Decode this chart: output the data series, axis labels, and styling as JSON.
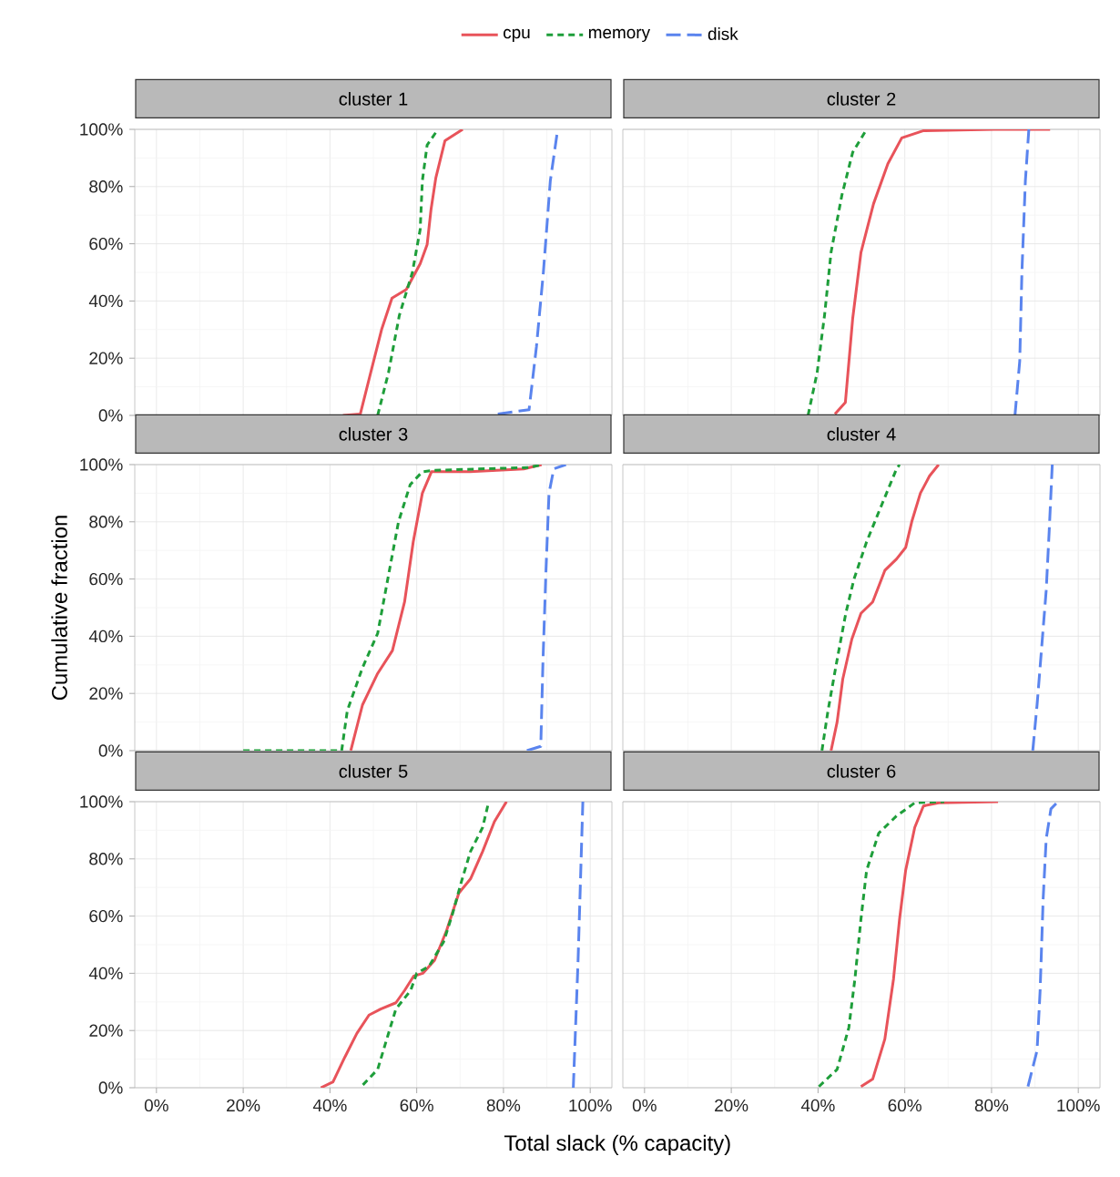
{
  "chart_data": [
    {
      "type": "line",
      "title": "cluster 1",
      "legend": "top",
      "grid": true,
      "tick_labels": "y",
      "xlim": [
        -5,
        105
      ],
      "ylim": [
        0,
        100
      ],
      "xticks": [
        {
          "value": 0,
          "label": null
        },
        {
          "value": 20,
          "label": null
        },
        {
          "value": 40,
          "label": null
        },
        {
          "value": 60,
          "label": null
        },
        {
          "value": 80,
          "label": null
        },
        {
          "value": 100,
          "label": null
        }
      ],
      "yticks": [
        {
          "value": 0,
          "label": "0%"
        },
        {
          "value": 20,
          "label": "20%"
        },
        {
          "value": 40,
          "label": "40%"
        },
        {
          "value": 60,
          "label": "60%"
        },
        {
          "value": 80,
          "label": "80%"
        },
        {
          "value": 100,
          "label": "100%"
        }
      ],
      "series": [
        {
          "name": "cpu",
          "color": "#e8535a",
          "line_style": "solid",
          "x": [
            43,
            47,
            49.4,
            51.9,
            54.3,
            57.6,
            60.8,
            62.4,
            63.3,
            64.4,
            66.5,
            70.6
          ],
          "values": [
            0,
            0.5,
            15,
            30,
            41,
            44,
            53,
            59.7,
            72,
            83,
            96,
            100
          ]
        },
        {
          "name": "memory",
          "color": "#1e9e3a",
          "line_style": "dotted",
          "x": [
            51,
            53.5,
            56,
            59,
            60.8,
            61.3,
            62.4,
            64.9
          ],
          "values": [
            0,
            15,
            35,
            50,
            65,
            82,
            94.5,
            100
          ]
        },
        {
          "name": "disk",
          "color": "#5a84ee",
          "line_style": "dashed",
          "x": [
            78.7,
            85.9,
            87.6,
            89.2,
            90.8,
            92.5
          ],
          "values": [
            0.5,
            2,
            24,
            50,
            82,
            100
          ]
        }
      ]
    },
    {
      "type": "line",
      "title": "cluster 2",
      "grid": true,
      "tick_labels": false,
      "xlim": [
        -5,
        105
      ],
      "ylim": [
        0,
        100
      ],
      "xticks": [
        {
          "value": 0,
          "label": null
        },
        {
          "value": 20,
          "label": null
        },
        {
          "value": 40,
          "label": null
        },
        {
          "value": 60,
          "label": null
        },
        {
          "value": 80,
          "label": null
        },
        {
          "value": 100,
          "label": null
        }
      ],
      "yticks": [
        {
          "value": 0,
          "label": null
        },
        {
          "value": 20,
          "label": null
        },
        {
          "value": 40,
          "label": null
        },
        {
          "value": 60,
          "label": null
        },
        {
          "value": 80,
          "label": null
        },
        {
          "value": 100,
          "label": null
        }
      ],
      "series": [
        {
          "color": "#e8535a",
          "line_style": "solid",
          "x": [
            43.9,
            46.3,
            48,
            49.9,
            52.8,
            56.1,
            59.3,
            64.2,
            80.5,
            93.5
          ],
          "values": [
            0.5,
            4.5,
            34,
            57,
            74,
            88,
            97,
            99.5,
            100,
            100
          ]
        },
        {
          "color": "#1e9e3a",
          "line_style": "dotted",
          "x": [
            37.7,
            39.8,
            41.5,
            43,
            45.5,
            48,
            51.2
          ],
          "values": [
            0,
            15,
            35,
            57,
            77,
            92,
            100
          ]
        },
        {
          "color": "#5a84ee",
          "line_style": "dashed",
          "x": [
            85.4,
            86.5,
            87,
            87.8,
            88.6
          ],
          "values": [
            0,
            19,
            50,
            82,
            100
          ]
        }
      ]
    },
    {
      "type": "line",
      "title": "cluster 3",
      "ylabel": "Cumulative fraction",
      "grid": true,
      "tick_labels": "y",
      "xlim": [
        -5,
        105
      ],
      "ylim": [
        0,
        100
      ],
      "xticks": [
        {
          "value": 0,
          "label": null
        },
        {
          "value": 20,
          "label": null
        },
        {
          "value": 40,
          "label": null
        },
        {
          "value": 60,
          "label": null
        },
        {
          "value": 80,
          "label": null
        },
        {
          "value": 100,
          "label": null
        }
      ],
      "yticks": [
        {
          "value": 0,
          "label": "0%"
        },
        {
          "value": 20,
          "label": "20%"
        },
        {
          "value": 40,
          "label": "40%"
        },
        {
          "value": 60,
          "label": "60%"
        },
        {
          "value": 80,
          "label": "80%"
        },
        {
          "value": 100,
          "label": "100%"
        }
      ],
      "series": [
        {
          "color": "#e8535a",
          "line_style": "solid",
          "x": [
            44.8,
            47.5,
            51,
            54.4,
            57.2,
            59.2,
            61.3,
            63.4,
            72.3,
            84.7,
            88.8
          ],
          "values": [
            0,
            16,
            27,
            35,
            52,
            73,
            90,
            97.5,
            97.5,
            98.5,
            100
          ]
        },
        {
          "color": "#1e9e3a",
          "line_style": "dotted",
          "x": [
            20,
            42.7,
            44,
            47.5,
            51,
            53.7,
            55.8,
            58.5,
            61.3,
            64,
            86,
            88.8
          ],
          "values": [
            0,
            0,
            14,
            29,
            41,
            63,
            80,
            93,
            97.5,
            98,
            99,
            100
          ]
        },
        {
          "color": "#5a84ee",
          "line_style": "dashed",
          "x": [
            85.4,
            88.6,
            89.1,
            89.8,
            90.5,
            91.6,
            94.4
          ],
          "values": [
            0,
            1.5,
            31,
            63,
            90,
            98.5,
            100
          ]
        }
      ]
    },
    {
      "type": "line",
      "title": "cluster 4",
      "grid": true,
      "tick_labels": false,
      "xlim": [
        -5,
        105
      ],
      "ylim": [
        0,
        100
      ],
      "xticks": [
        {
          "value": 0,
          "label": null
        },
        {
          "value": 20,
          "label": null
        },
        {
          "value": 40,
          "label": null
        },
        {
          "value": 60,
          "label": null
        },
        {
          "value": 80,
          "label": null
        },
        {
          "value": 100,
          "label": null
        }
      ],
      "yticks": [
        {
          "value": 0,
          "label": null
        },
        {
          "value": 20,
          "label": null
        },
        {
          "value": 40,
          "label": null
        },
        {
          "value": 60,
          "label": null
        },
        {
          "value": 80,
          "label": null
        },
        {
          "value": 100,
          "label": null
        }
      ],
      "series": [
        {
          "color": "#e8535a",
          "line_style": "solid",
          "x": [
            43,
            44.4,
            45.7,
            47.8,
            49.9,
            52.6,
            55.4,
            58.1,
            60.2,
            61.6,
            63.6,
            65.7,
            67.8
          ],
          "values": [
            0,
            10,
            25,
            39,
            48,
            52,
            63,
            67,
            71,
            80,
            90,
            96,
            100
          ]
        },
        {
          "color": "#1e9e3a",
          "line_style": "dotted",
          "x": [
            40.9,
            42.3,
            44.3,
            46.4,
            48.3,
            51.2,
            54.7,
            58.1,
            58.8
          ],
          "values": [
            0,
            14,
            31,
            48,
            60,
            73,
            86,
            98.5,
            100
          ]
        },
        {
          "color": "#5a84ee",
          "line_style": "dashed",
          "x": [
            89.5,
            90.5,
            91.5,
            92.6,
            93.3,
            94
          ],
          "values": [
            0,
            16,
            35,
            56,
            77,
            100
          ]
        }
      ]
    },
    {
      "type": "line",
      "title": "cluster 5",
      "xlabel": "Total slack (% capacity)",
      "grid": true,
      "xlim": [
        -5,
        105
      ],
      "ylim": [
        0,
        100
      ],
      "xticks": [
        {
          "value": 0,
          "label": "0%"
        },
        {
          "value": 20,
          "label": "20%"
        },
        {
          "value": 40,
          "label": "40%"
        },
        {
          "value": 60,
          "label": "60%"
        },
        {
          "value": 80,
          "label": "80%"
        },
        {
          "value": 100,
          "label": "100%"
        }
      ],
      "yticks": [
        {
          "value": 0,
          "label": "0%"
        },
        {
          "value": 20,
          "label": "20%"
        },
        {
          "value": 40,
          "label": "40%"
        },
        {
          "value": 60,
          "label": "60%"
        },
        {
          "value": 80,
          "label": "80%"
        },
        {
          "value": 100,
          "label": "100%"
        }
      ],
      "series": [
        {
          "color": "#e8535a",
          "line_style": "solid",
          "x": [
            37.9,
            40.7,
            43.4,
            46.2,
            49,
            51.7,
            55.2,
            57.2,
            59.3,
            61.4,
            64.1,
            66.9,
            69.7,
            72.4,
            75.2,
            77.9,
            80.7
          ],
          "values": [
            0,
            2,
            10.6,
            19,
            25.4,
            27.5,
            29.7,
            34,
            39,
            40,
            44.5,
            55,
            68,
            73,
            82.6,
            93,
            100
          ]
        },
        {
          "color": "#1e9e3a",
          "line_style": "dotted",
          "x": [
            47.6,
            51,
            53.1,
            55.2,
            58.6,
            60,
            62.8,
            66.2,
            68.3,
            70.3,
            72.4,
            75.2,
            76.6
          ],
          "values": [
            1,
            6.4,
            17,
            27.5,
            34,
            40,
            42.4,
            51,
            61,
            72,
            82.6,
            91,
            100
          ]
        },
        {
          "color": "#5a84ee",
          "line_style": "dashed",
          "x": [
            96.1,
            97.2,
            98.3
          ],
          "values": [
            0,
            44.5,
            100
          ]
        }
      ]
    },
    {
      "type": "line",
      "title": "cluster 6",
      "grid": true,
      "tick_labels": "x",
      "xlim": [
        -5,
        105
      ],
      "ylim": [
        0,
        100
      ],
      "xticks": [
        {
          "value": 0,
          "label": "0%"
        },
        {
          "value": 20,
          "label": "20%"
        },
        {
          "value": 40,
          "label": "40%"
        },
        {
          "value": 60,
          "label": "60%"
        },
        {
          "value": 80,
          "label": "80%"
        },
        {
          "value": 100,
          "label": "100%"
        }
      ],
      "yticks": [
        {
          "value": 0,
          "label": null
        },
        {
          "value": 20,
          "label": null
        },
        {
          "value": 40,
          "label": null
        },
        {
          "value": 60,
          "label": null
        },
        {
          "value": 80,
          "label": null
        },
        {
          "value": 100,
          "label": null
        }
      ],
      "series": [
        {
          "color": "#e8535a",
          "line_style": "solid",
          "x": [
            49.9,
            52.6,
            55.4,
            57.4,
            58.8,
            60.2,
            62.3,
            64.3,
            67.8,
            81.5
          ],
          "values": [
            0.4,
            3,
            17,
            38,
            59,
            76,
            91,
            98.5,
            99.6,
            100
          ]
        },
        {
          "color": "#1e9e3a",
          "line_style": "dotted",
          "x": [
            40.2,
            44.4,
            47.1,
            48.5,
            49.9,
            51.2,
            54,
            58.1,
            62.3,
            69.1
          ],
          "values": [
            0.4,
            6.4,
            21,
            38,
            59,
            76,
            89,
            95,
            99.6,
            100
          ]
        },
        {
          "color": "#5a84ee",
          "line_style": "dashed",
          "x": [
            88.4,
            90.5,
            91.2,
            91.9,
            92.6,
            93.7,
            95.3
          ],
          "values": [
            0.4,
            13,
            34,
            66,
            87,
            97.5,
            100
          ]
        }
      ]
    }
  ]
}
